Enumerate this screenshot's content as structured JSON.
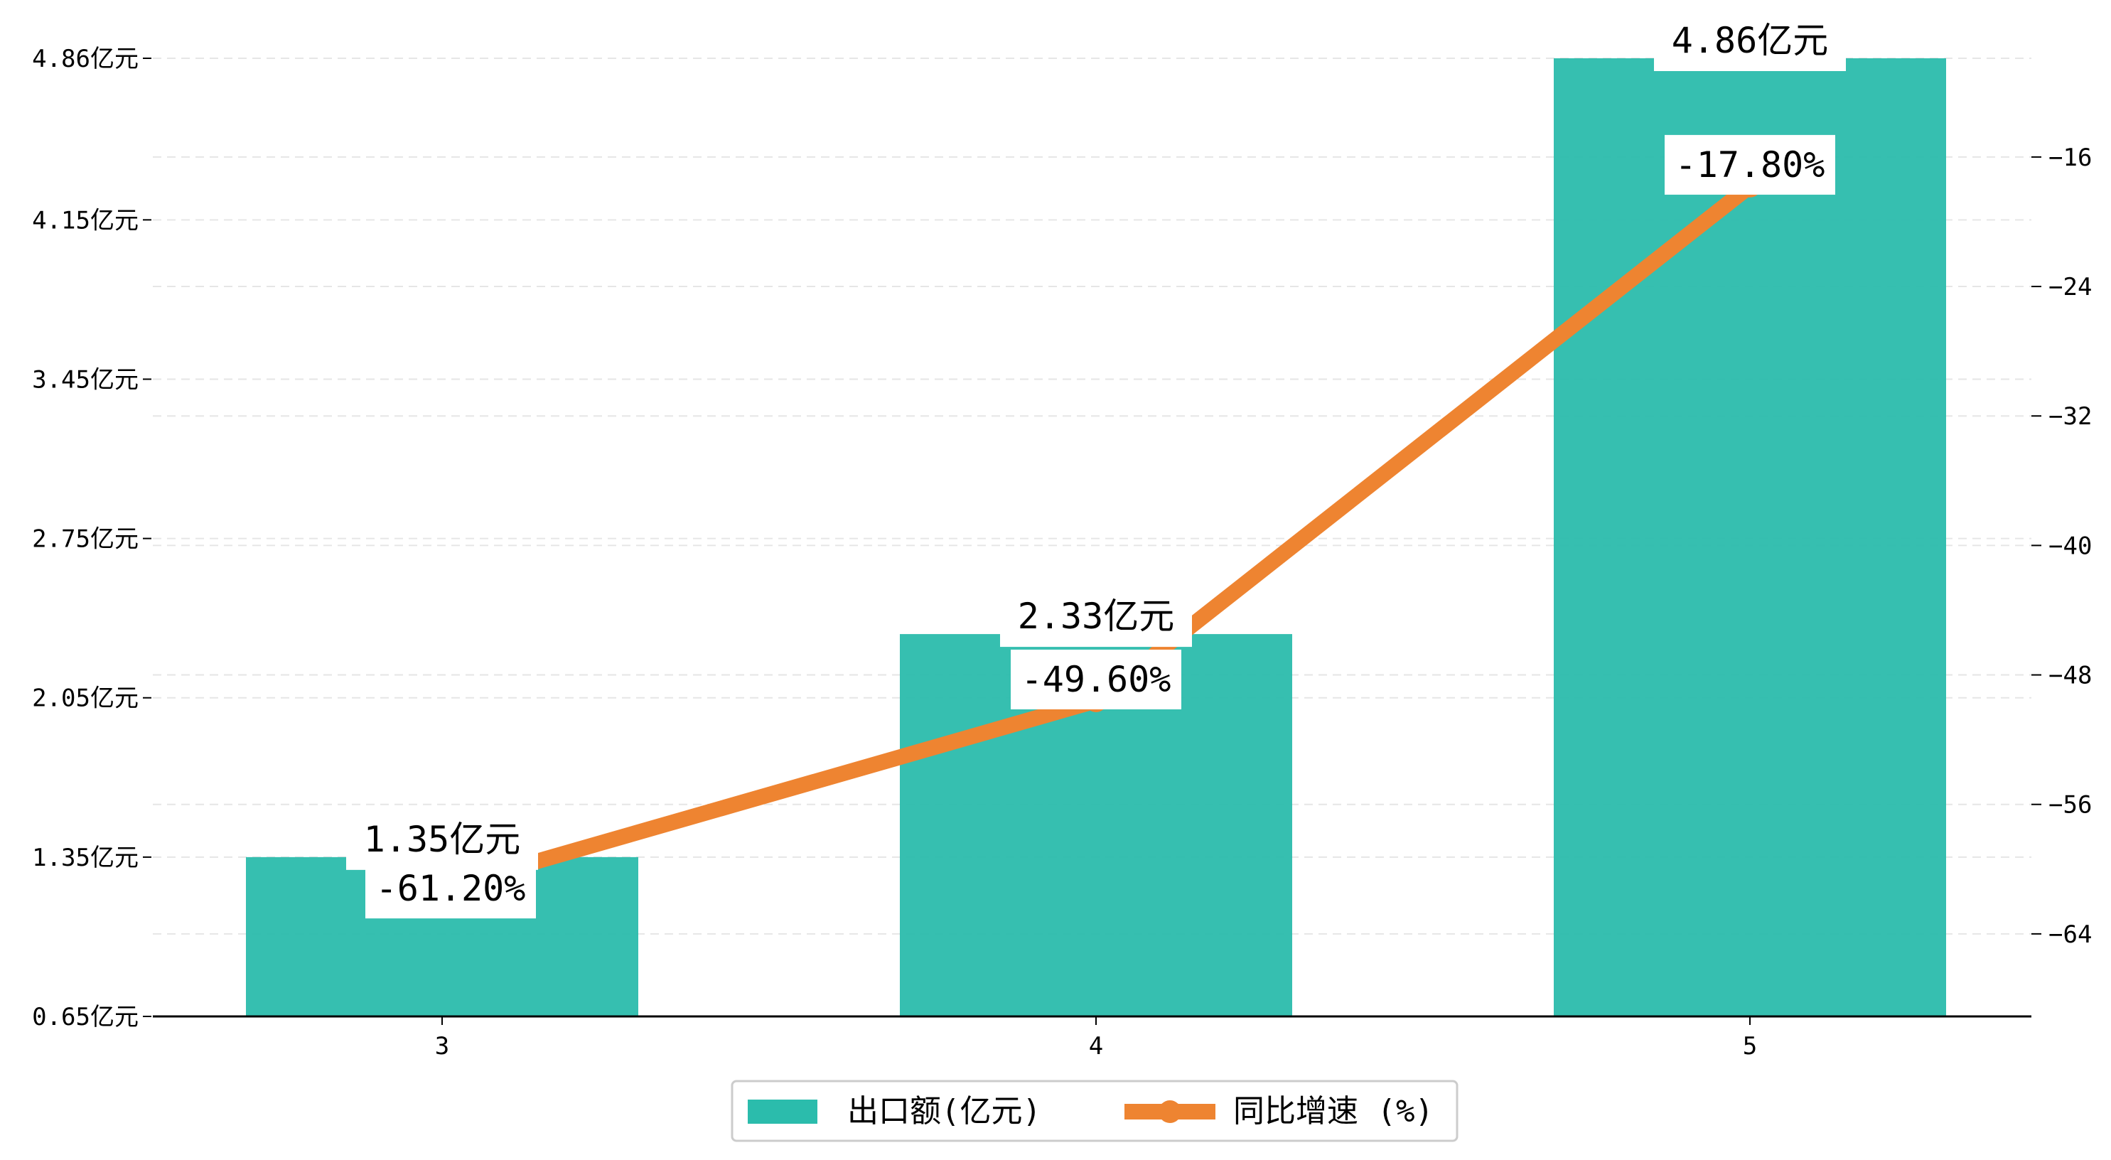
{
  "chart_data": {
    "type": "bar",
    "categories": [
      "3",
      "4",
      "5"
    ],
    "series": [
      {
        "name": "出口额(亿元)",
        "type": "bar",
        "axis": "left",
        "values": [
          1.35,
          2.33,
          4.86
        ],
        "labels": [
          "1.35亿元",
          "2.33亿元",
          "4.86亿元"
        ],
        "color": "#2bbcac"
      },
      {
        "name": "同比增速 (%)",
        "type": "line",
        "axis": "right",
        "values": [
          -61.2,
          -49.6,
          -17.8
        ],
        "labels": [
          "-61.20%",
          "-49.60%",
          "-17.80%"
        ],
        "color": "#ee8431"
      }
    ],
    "y_left": {
      "ticks": [
        0.65,
        1.35,
        2.05,
        2.75,
        3.45,
        4.15,
        4.86
      ],
      "tick_labels": [
        "0.65亿元",
        "1.35亿元",
        "2.05亿元",
        "2.75亿元",
        "3.45亿元",
        "4.15亿元",
        "4.86亿元"
      ],
      "ylim": [
        0.65,
        4.86
      ]
    },
    "y_right": {
      "ticks": [
        -64,
        -56,
        -48,
        -40,
        -32,
        -24,
        -16
      ],
      "tick_labels": [
        "−64",
        "−56",
        "−48",
        "−40",
        "−32",
        "−24",
        "−16"
      ],
      "ylim": [
        -69.1,
        -9.9
      ]
    },
    "grid": true,
    "legend_position": "bottom-center"
  }
}
